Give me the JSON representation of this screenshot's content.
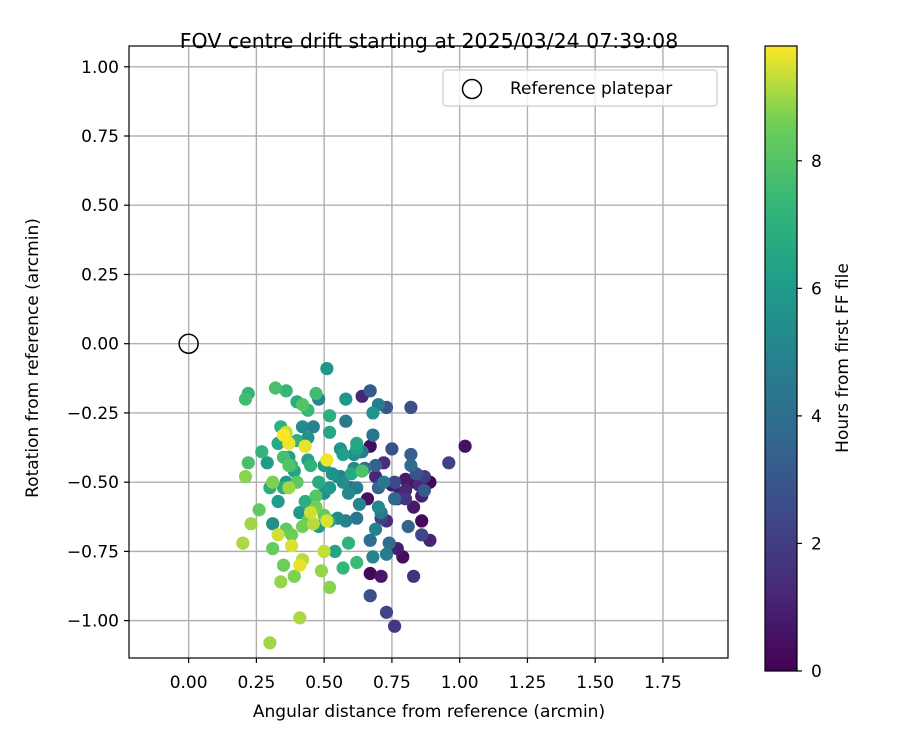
{
  "chart_data": {
    "type": "scatter",
    "title": "FOV centre drift starting at 2025/03/24 07:39:08",
    "xlabel": "Angular distance from reference (arcmin)",
    "ylabel": "Rotation from reference (arcmin)",
    "xlim": [
      -0.22,
      1.99
    ],
    "ylim": [
      -1.135,
      1.075
    ],
    "xticks": [
      0.0,
      0.25,
      0.5,
      0.75,
      1.0,
      1.25,
      1.5,
      1.75
    ],
    "xtick_labels": [
      "0.00",
      "0.25",
      "0.50",
      "0.75",
      "1.00",
      "1.25",
      "1.50",
      "1.75"
    ],
    "yticks": [
      1.0,
      0.75,
      0.5,
      0.25,
      0.0,
      -0.25,
      -0.5,
      -0.75,
      -1.0
    ],
    "ytick_labels": [
      "1.00",
      "0.75",
      "0.50",
      "0.25",
      "0.00",
      "−0.25",
      "−0.50",
      "−0.75",
      "−1.00"
    ],
    "grid": true,
    "legend": {
      "position": "top-right",
      "entries": [
        "Reference platepar"
      ]
    },
    "reference_point": {
      "label": "Reference platepar",
      "x": 0.0,
      "y": 0.0
    },
    "colorbar": {
      "label": "Hours from first FF file",
      "colormap": "viridis",
      "range": [
        0,
        9.8
      ],
      "ticks": [
        0,
        2,
        4,
        6,
        8
      ],
      "tick_labels": [
        "0",
        "2",
        "4",
        "6",
        "8"
      ]
    },
    "series": [
      {
        "color_by": "hours",
        "points": [
          [
            0.67,
            -0.83,
            0.2
          ],
          [
            0.86,
            -0.64,
            0.2
          ],
          [
            0.79,
            -0.77,
            0.4
          ],
          [
            0.89,
            -0.5,
            0.2
          ],
          [
            0.67,
            -0.37,
            0.3
          ],
          [
            1.02,
            -0.37,
            0.5
          ],
          [
            0.82,
            -0.5,
            0.6
          ],
          [
            0.71,
            -0.84,
            0.7
          ],
          [
            0.66,
            -0.56,
            0.5
          ],
          [
            0.75,
            -0.51,
            0.7
          ],
          [
            0.8,
            -0.49,
            0.8
          ],
          [
            0.83,
            -0.59,
            0.8
          ],
          [
            0.86,
            -0.55,
            1.0
          ],
          [
            0.78,
            -0.54,
            0.9
          ],
          [
            0.77,
            -0.74,
            0.9
          ],
          [
            0.89,
            -0.71,
            1.1
          ],
          [
            0.69,
            -0.48,
            1.2
          ],
          [
            0.8,
            -0.53,
            1.2
          ],
          [
            0.64,
            -0.19,
            1.2
          ],
          [
            0.85,
            -0.51,
            1.3
          ],
          [
            0.72,
            -0.43,
            1.4
          ],
          [
            0.63,
            -0.39,
            1.4
          ],
          [
            0.73,
            -0.64,
            1.4
          ],
          [
            0.83,
            -0.84,
            1.6
          ],
          [
            0.8,
            -0.56,
            1.7
          ],
          [
            0.76,
            -1.02,
            1.8
          ],
          [
            0.87,
            -0.48,
            2.0
          ],
          [
            0.77,
            -0.56,
            1.8
          ],
          [
            0.71,
            -0.63,
            2.1
          ],
          [
            0.73,
            -0.97,
            2.3
          ],
          [
            0.96,
            -0.43,
            2.2
          ],
          [
            0.86,
            -0.69,
            2.4
          ],
          [
            0.76,
            -0.5,
            2.5
          ],
          [
            0.67,
            -0.91,
            2.7
          ],
          [
            0.82,
            -0.23,
            2.7
          ],
          [
            0.75,
            -0.38,
            2.8
          ],
          [
            0.84,
            -0.47,
            2.9
          ],
          [
            0.73,
            -0.23,
            3.0
          ],
          [
            0.67,
            -0.17,
            3.1
          ],
          [
            0.87,
            -0.53,
            3.2
          ],
          [
            0.82,
            -0.4,
            3.3
          ],
          [
            0.69,
            -0.44,
            3.4
          ],
          [
            0.81,
            -0.66,
            3.5
          ],
          [
            0.7,
            -0.52,
            3.6
          ],
          [
            0.6,
            -0.52,
            3.6
          ],
          [
            0.76,
            -0.56,
            3.7
          ],
          [
            0.82,
            -0.44,
            3.8
          ],
          [
            0.67,
            -0.71,
            3.9
          ],
          [
            0.74,
            -0.72,
            4.0
          ],
          [
            0.56,
            -0.48,
            4.1
          ],
          [
            0.65,
            -0.45,
            4.2
          ],
          [
            0.68,
            -0.33,
            4.3
          ],
          [
            0.62,
            -0.63,
            4.3
          ],
          [
            0.72,
            -0.5,
            4.4
          ],
          [
            0.58,
            -0.28,
            4.5
          ],
          [
            0.71,
            -0.61,
            4.5
          ],
          [
            0.73,
            -0.76,
            4.6
          ],
          [
            0.64,
            -0.39,
            4.6
          ],
          [
            0.62,
            -0.52,
            4.7
          ],
          [
            0.7,
            -0.22,
            4.7
          ],
          [
            0.58,
            -0.64,
            4.8
          ],
          [
            0.69,
            -0.67,
            4.8
          ],
          [
            0.46,
            -0.3,
            4.9
          ],
          [
            0.55,
            -0.48,
            4.9
          ],
          [
            0.63,
            -0.58,
            5.0
          ],
          [
            0.68,
            -0.77,
            5.0
          ],
          [
            0.59,
            -0.54,
            5.1
          ],
          [
            0.48,
            -0.2,
            5.1
          ],
          [
            0.61,
            -0.45,
            5.2
          ],
          [
            0.7,
            -0.59,
            5.2
          ],
          [
            0.55,
            -0.63,
            5.3
          ],
          [
            0.42,
            -0.3,
            5.3
          ],
          [
            0.57,
            -0.5,
            5.4
          ],
          [
            0.5,
            -0.54,
            5.5
          ],
          [
            0.61,
            -0.4,
            5.5
          ],
          [
            0.31,
            -0.65,
            5.5
          ],
          [
            0.44,
            -0.34,
            5.6
          ],
          [
            0.53,
            -0.47,
            5.6
          ],
          [
            0.68,
            -0.25,
            5.7
          ],
          [
            0.56,
            -0.38,
            5.7
          ],
          [
            0.51,
            -0.09,
            5.8
          ],
          [
            0.58,
            -0.2,
            5.8
          ],
          [
            0.36,
            -0.5,
            5.9
          ],
          [
            0.41,
            -0.61,
            5.9
          ],
          [
            0.5,
            -0.44,
            6.0
          ],
          [
            0.52,
            -0.52,
            6.0
          ],
          [
            0.29,
            -0.43,
            6.0
          ],
          [
            0.48,
            -0.66,
            6.1
          ],
          [
            0.33,
            -0.57,
            6.1
          ],
          [
            0.62,
            -0.38,
            6.2
          ],
          [
            0.57,
            -0.4,
            6.2
          ],
          [
            0.37,
            -0.41,
            6.3
          ],
          [
            0.52,
            -0.64,
            6.3
          ],
          [
            0.44,
            -0.42,
            6.3
          ],
          [
            0.54,
            -0.75,
            6.4
          ],
          [
            0.39,
            -0.46,
            6.4
          ],
          [
            0.62,
            -0.36,
            6.5
          ],
          [
            0.52,
            -0.32,
            6.5
          ],
          [
            0.33,
            -0.36,
            6.6
          ],
          [
            0.6,
            -0.47,
            6.6
          ],
          [
            0.4,
            -0.21,
            6.7
          ],
          [
            0.48,
            -0.5,
            6.7
          ],
          [
            0.35,
            -0.52,
            6.8
          ],
          [
            0.3,
            -0.52,
            6.8
          ],
          [
            0.43,
            -0.57,
            6.9
          ],
          [
            0.52,
            -0.26,
            6.9
          ],
          [
            0.34,
            -0.3,
            7.0
          ],
          [
            0.4,
            -0.35,
            7.0
          ],
          [
            0.45,
            -0.44,
            7.1
          ],
          [
            0.59,
            -0.72,
            7.1
          ],
          [
            0.22,
            -0.18,
            7.2
          ],
          [
            0.27,
            -0.39,
            7.2
          ],
          [
            0.36,
            -0.17,
            7.3
          ],
          [
            0.57,
            -0.81,
            7.3
          ],
          [
            0.44,
            -0.24,
            7.4
          ],
          [
            0.38,
            -0.44,
            7.4
          ],
          [
            0.62,
            -0.79,
            7.5
          ],
          [
            0.47,
            -0.18,
            7.6
          ],
          [
            0.21,
            -0.2,
            7.6
          ],
          [
            0.35,
            -0.41,
            7.7
          ],
          [
            0.32,
            -0.16,
            7.8
          ],
          [
            0.22,
            -0.43,
            7.8
          ],
          [
            0.64,
            -0.46,
            7.9
          ],
          [
            0.42,
            -0.22,
            8.0
          ],
          [
            0.37,
            -0.44,
            8.0
          ],
          [
            0.47,
            -0.55,
            8.1
          ],
          [
            0.4,
            -0.5,
            8.2
          ],
          [
            0.36,
            -0.67,
            8.2
          ],
          [
            0.5,
            -0.62,
            8.3
          ],
          [
            0.26,
            -0.6,
            8.3
          ],
          [
            0.31,
            -0.74,
            8.4
          ],
          [
            0.44,
            -0.64,
            8.4
          ],
          [
            0.35,
            -0.8,
            8.5
          ],
          [
            0.38,
            -0.69,
            8.5
          ],
          [
            0.47,
            -0.59,
            8.6
          ],
          [
            0.42,
            -0.66,
            8.6
          ],
          [
            0.31,
            -0.5,
            8.7
          ],
          [
            0.39,
            -0.84,
            8.7
          ],
          [
            0.52,
            -0.88,
            8.8
          ],
          [
            0.21,
            -0.48,
            8.8
          ],
          [
            0.34,
            -0.86,
            8.9
          ],
          [
            0.49,
            -0.82,
            8.9
          ],
          [
            0.37,
            -0.52,
            9.0
          ],
          [
            0.3,
            -1.08,
            9.0
          ],
          [
            0.23,
            -0.65,
            9.0
          ],
          [
            0.41,
            -0.99,
            9.1
          ],
          [
            0.2,
            -0.72,
            9.1
          ],
          [
            0.46,
            -0.65,
            9.2
          ],
          [
            0.42,
            -0.78,
            9.2
          ],
          [
            0.36,
            -0.32,
            9.3
          ],
          [
            0.5,
            -0.75,
            9.3
          ],
          [
            0.33,
            -0.69,
            9.4
          ],
          [
            0.45,
            -0.61,
            9.4
          ],
          [
            0.38,
            -0.73,
            9.5
          ],
          [
            0.51,
            -0.64,
            9.5
          ],
          [
            0.41,
            -0.8,
            9.6
          ],
          [
            0.43,
            -0.37,
            9.6
          ],
          [
            0.37,
            -0.36,
            9.7
          ],
          [
            0.51,
            -0.42,
            9.7
          ],
          [
            0.35,
            -0.33,
            9.8
          ]
        ]
      }
    ]
  }
}
